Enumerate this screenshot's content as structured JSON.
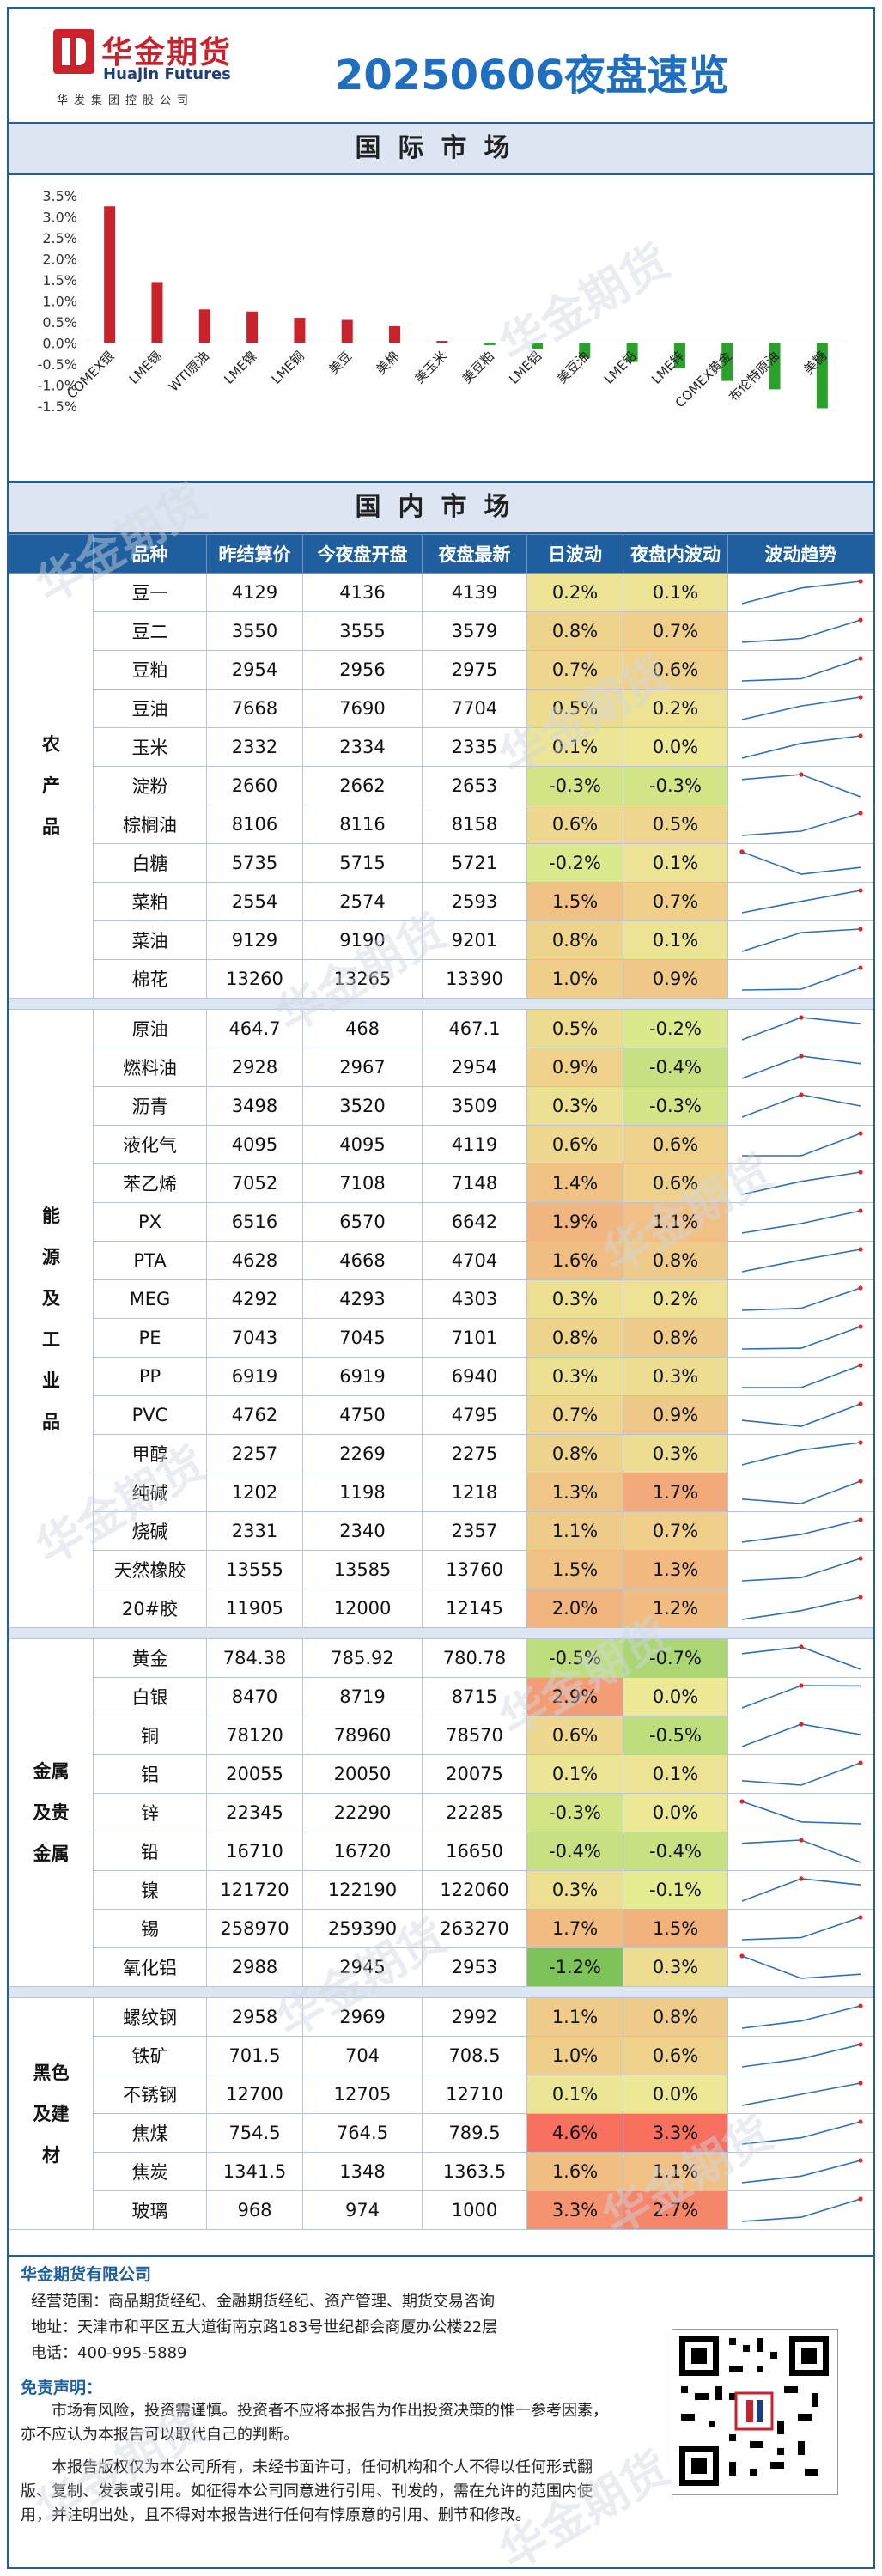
{
  "header": {
    "logo_cn": "华金期货",
    "logo_en": "Huajin Futures",
    "logo_sub": "华发集团控股公司",
    "title": "20250606夜盘速览"
  },
  "sections": {
    "international": "国际市场",
    "domestic": "国内市场"
  },
  "watermark": "华金期货",
  "chart_data": {
    "type": "bar",
    "categories": [
      "COMEX银",
      "LME锡",
      "WTI原油",
      "LME镍",
      "LME铜",
      "美豆",
      "美棉",
      "美玉米",
      "美豆粕",
      "LME铝",
      "美豆油",
      "LME铅",
      "LME锌",
      "COMEX黄金",
      "布伦特原油",
      "美糖"
    ],
    "values": [
      3.25,
      1.45,
      0.8,
      0.75,
      0.6,
      0.55,
      0.4,
      0.05,
      -0.05,
      -0.15,
      -0.35,
      -0.45,
      -0.6,
      -0.9,
      -1.1,
      -1.55
    ],
    "positive_color": "#c8232c",
    "negative_color": "#2ca02c",
    "ylim": [
      -1.5,
      3.5
    ],
    "yticks": [
      "3.5%",
      "3.0%",
      "2.5%",
      "2.0%",
      "1.5%",
      "1.0%",
      "0.5%",
      "0.0%",
      "-0.5%",
      "-1.0%",
      "-1.5%"
    ],
    "grid": false
  },
  "table": {
    "headers": [
      "品种",
      "昨结算价",
      "今夜盘开盘",
      "夜盘最新",
      "日波动",
      "夜盘内波动",
      "波动趋势"
    ],
    "groups": [
      {
        "name": "农产品",
        "rows": [
          [
            "豆一",
            "4129",
            "4136",
            "4139",
            "0.2%",
            "0.1%"
          ],
          [
            "豆二",
            "3550",
            "3555",
            "3579",
            "0.8%",
            "0.7%"
          ],
          [
            "豆粕",
            "2954",
            "2956",
            "2975",
            "0.7%",
            "0.6%"
          ],
          [
            "豆油",
            "7668",
            "7690",
            "7704",
            "0.5%",
            "0.2%"
          ],
          [
            "玉米",
            "2332",
            "2334",
            "2335",
            "0.1%",
            "0.0%"
          ],
          [
            "淀粉",
            "2660",
            "2662",
            "2653",
            "-0.3%",
            "-0.3%"
          ],
          [
            "棕榈油",
            "8106",
            "8116",
            "8158",
            "0.6%",
            "0.5%"
          ],
          [
            "白糖",
            "5735",
            "5715",
            "5721",
            "-0.2%",
            "0.1%"
          ],
          [
            "菜粕",
            "2554",
            "2574",
            "2593",
            "1.5%",
            "0.7%"
          ],
          [
            "菜油",
            "9129",
            "9190",
            "9201",
            "0.8%",
            "0.1%"
          ],
          [
            "棉花",
            "13260",
            "13265",
            "13390",
            "1.0%",
            "0.9%"
          ]
        ]
      },
      {
        "name": "能源及工业品",
        "rows": [
          [
            "原油",
            "464.7",
            "468",
            "467.1",
            "0.5%",
            "-0.2%"
          ],
          [
            "燃料油",
            "2928",
            "2967",
            "2954",
            "0.9%",
            "-0.4%"
          ],
          [
            "沥青",
            "3498",
            "3520",
            "3509",
            "0.3%",
            "-0.3%"
          ],
          [
            "液化气",
            "4095",
            "4095",
            "4119",
            "0.6%",
            "0.6%"
          ],
          [
            "苯乙烯",
            "7052",
            "7108",
            "7148",
            "1.4%",
            "0.6%"
          ],
          [
            "PX",
            "6516",
            "6570",
            "6642",
            "1.9%",
            "1.1%"
          ],
          [
            "PTA",
            "4628",
            "4668",
            "4704",
            "1.6%",
            "0.8%"
          ],
          [
            "MEG",
            "4292",
            "4293",
            "4303",
            "0.3%",
            "0.2%"
          ],
          [
            "PE",
            "7043",
            "7045",
            "7101",
            "0.8%",
            "0.8%"
          ],
          [
            "PP",
            "6919",
            "6919",
            "6940",
            "0.3%",
            "0.3%"
          ],
          [
            "PVC",
            "4762",
            "4750",
            "4795",
            "0.7%",
            "0.9%"
          ],
          [
            "甲醇",
            "2257",
            "2269",
            "2275",
            "0.8%",
            "0.3%"
          ],
          [
            "纯碱",
            "1202",
            "1198",
            "1218",
            "1.3%",
            "1.7%"
          ],
          [
            "烧碱",
            "2331",
            "2340",
            "2357",
            "1.1%",
            "0.7%"
          ],
          [
            "天然橡胶",
            "13555",
            "13585",
            "13760",
            "1.5%",
            "1.3%"
          ],
          [
            "20#胶",
            "11905",
            "12000",
            "12145",
            "2.0%",
            "1.2%"
          ]
        ]
      },
      {
        "name": "金属及贵金属",
        "rows": [
          [
            "黄金",
            "784.38",
            "785.92",
            "780.78",
            "-0.5%",
            "-0.7%"
          ],
          [
            "白银",
            "8470",
            "8719",
            "8715",
            "2.9%",
            "0.0%"
          ],
          [
            "铜",
            "78120",
            "78960",
            "78570",
            "0.6%",
            "-0.5%"
          ],
          [
            "铝",
            "20055",
            "20050",
            "20075",
            "0.1%",
            "0.1%"
          ],
          [
            "锌",
            "22345",
            "22290",
            "22285",
            "-0.3%",
            "0.0%"
          ],
          [
            "铅",
            "16710",
            "16720",
            "16650",
            "-0.4%",
            "-0.4%"
          ],
          [
            "镍",
            "121720",
            "122190",
            "122060",
            "0.3%",
            "-0.1%"
          ],
          [
            "锡",
            "258970",
            "259390",
            "263270",
            "1.7%",
            "1.5%"
          ],
          [
            "氧化铝",
            "2988",
            "2945",
            "2953",
            "-1.2%",
            "0.3%"
          ]
        ]
      },
      {
        "name": "黑色及建材",
        "rows": [
          [
            "螺纹钢",
            "2958",
            "2969",
            "2992",
            "1.1%",
            "0.8%"
          ],
          [
            "铁矿",
            "701.5",
            "704",
            "708.5",
            "1.0%",
            "0.6%"
          ],
          [
            "不锈钢",
            "12700",
            "12705",
            "12710",
            "0.1%",
            "0.0%"
          ],
          [
            "焦煤",
            "754.5",
            "764.5",
            "789.5",
            "4.6%",
            "3.3%"
          ],
          [
            "焦炭",
            "1341.5",
            "1348",
            "1363.5",
            "1.6%",
            "1.1%"
          ],
          [
            "玻璃",
            "968",
            "974",
            "1000",
            "3.3%",
            "2.7%"
          ]
        ]
      }
    ]
  },
  "footer": {
    "company": "华金期货有限公司",
    "scope": "经营范围：商品期货经纪、金融期货经纪、资产管理、期货交易咨询",
    "address": "地址：天津市和平区五大道街南京路183号世纪都会商厦办公楼22层",
    "phone": "电话：400-995-5889",
    "disclaimer_title": "免责声明：",
    "disclaimer_1": "市场有风险，投资需谨慎。投资者不应将本报告为作出投资决策的惟一参考因素，亦不应认为本报告可以取代自己的判断。",
    "disclaimer_2": "本报告版权仅为本公司所有，未经书面许可，任何机构和个人不得以任何形式翻版、复制、发表或引用。如征得本公司同意进行引用、刊发的，需在允许的范围内使用，并注明出处，且不得对本报告进行任何有悖原意的引用、删节和修改。"
  }
}
